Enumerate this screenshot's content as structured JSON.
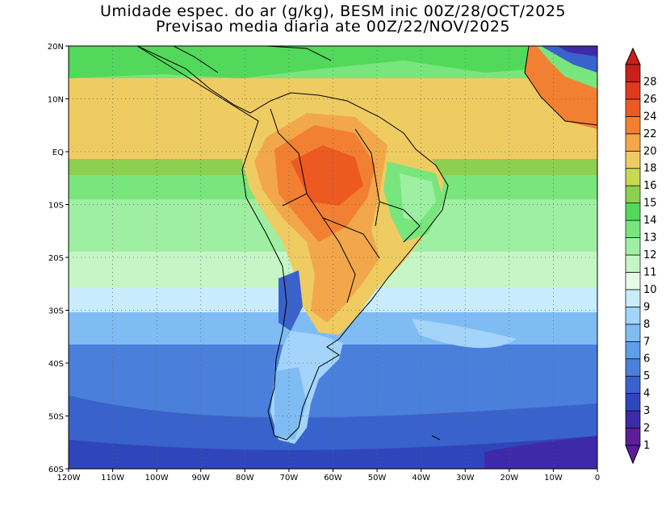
{
  "header": {
    "title_line1": "Umidade espec. do ar (g/kg), BESM inic 00Z/28/OCT/2025",
    "title_line2": "Previsao media diaria ate 00Z/22/NOV/2025"
  },
  "map": {
    "lon_range": [
      -120,
      0
    ],
    "lat_range": [
      -60,
      20
    ],
    "lat_ticks": [
      {
        "value": 20,
        "label": "20N"
      },
      {
        "value": 10,
        "label": "10N"
      },
      {
        "value": 0,
        "label": "EQ"
      },
      {
        "value": -10,
        "label": "10S"
      },
      {
        "value": -20,
        "label": "20S"
      },
      {
        "value": -30,
        "label": "30S"
      },
      {
        "value": -40,
        "label": "40S"
      },
      {
        "value": -50,
        "label": "50S"
      },
      {
        "value": -60,
        "label": "60S"
      }
    ],
    "lon_ticks": [
      {
        "value": -120,
        "label": "120W"
      },
      {
        "value": -110,
        "label": "110W"
      },
      {
        "value": -100,
        "label": "100W"
      },
      {
        "value": -90,
        "label": "90W"
      },
      {
        "value": -80,
        "label": "80W"
      },
      {
        "value": -70,
        "label": "70W"
      },
      {
        "value": -60,
        "label": "60W"
      },
      {
        "value": -50,
        "label": "50W"
      },
      {
        "value": -40,
        "label": "40W"
      },
      {
        "value": -30,
        "label": "30W"
      },
      {
        "value": -20,
        "label": "20W"
      },
      {
        "value": -10,
        "label": "10W"
      },
      {
        "value": 0,
        "label": "0"
      }
    ],
    "grid": "dotted"
  },
  "colorbar": {
    "levels": [
      "1",
      "2",
      "3",
      "4",
      "5",
      "6",
      "7",
      "8",
      "9",
      "10",
      "11",
      "12",
      "13",
      "14",
      "15",
      "16",
      "18",
      "20",
      "22",
      "24",
      "26",
      "28"
    ],
    "colors": [
      "#5a1e9a",
      "#3e2aa8",
      "#2f45bc",
      "#3a62cc",
      "#4a80dc",
      "#5f9ee8",
      "#7fbcf4",
      "#a4d4fa",
      "#c8ecfc",
      "#e6fbe6",
      "#c6f5c6",
      "#9fefa3",
      "#78e67c",
      "#52d85a",
      "#8dcf4e",
      "#c8d852",
      "#efcc62",
      "#f2a84a",
      "#f28032",
      "#ec5a22",
      "#e03a1c",
      "#c8201a"
    ]
  }
}
